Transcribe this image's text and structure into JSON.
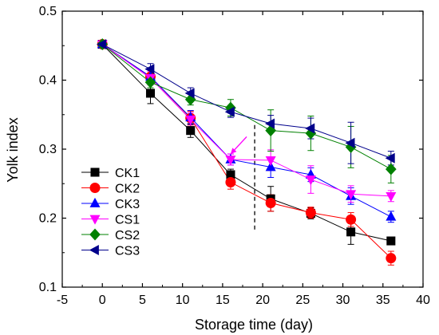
{
  "chart_data": {
    "type": "line",
    "xlabel": "Storage time (day)",
    "ylabel": "Yolk index",
    "xlim": [
      -5,
      40
    ],
    "ylim": [
      0.1,
      0.5
    ],
    "xticks": [
      -5,
      0,
      5,
      10,
      15,
      20,
      25,
      30,
      35,
      40
    ],
    "yticks": [
      0.1,
      0.2,
      0.3,
      0.4,
      0.5
    ],
    "x": [
      0,
      6,
      11,
      16,
      21,
      26,
      31,
      36
    ],
    "legend_position": "center-left",
    "reference_line_x": 19,
    "annotation_arrow": {
      "from": [
        18,
        0.318
      ],
      "to": [
        16,
        0.293
      ],
      "color": "#ff00ff"
    },
    "series": [
      {
        "name": "CK1",
        "color": "#000000",
        "marker": "square",
        "values": [
          0.452,
          0.381,
          0.327,
          0.263,
          0.228,
          0.207,
          0.18,
          0.167
        ],
        "errors": [
          0.005,
          0.015,
          0.01,
          0.008,
          0.018,
          0.008,
          0.018,
          0.005
        ]
      },
      {
        "name": "CK2",
        "color": "#ff0000",
        "marker": "circle",
        "values": [
          0.452,
          0.405,
          0.345,
          0.252,
          0.222,
          0.208,
          0.198,
          0.142
        ],
        "errors": [
          0.005,
          0.012,
          0.01,
          0.01,
          0.012,
          0.008,
          0.01,
          0.01
        ]
      },
      {
        "name": "CK3",
        "color": "#0000ff",
        "marker": "triangle-up",
        "values": [
          0.452,
          0.405,
          0.346,
          0.285,
          0.274,
          0.263,
          0.232,
          0.202
        ],
        "errors": [
          0.005,
          0.01,
          0.01,
          0.008,
          0.015,
          0.01,
          0.012,
          0.008
        ]
      },
      {
        "name": "CS1",
        "color": "#ff00ff",
        "marker": "triangle-down",
        "values": [
          0.452,
          0.403,
          0.343,
          0.285,
          0.284,
          0.256,
          0.235,
          0.232
        ],
        "errors": [
          0.005,
          0.01,
          0.01,
          0.008,
          0.015,
          0.02,
          0.012,
          0.008
        ]
      },
      {
        "name": "CS2",
        "color": "#008000",
        "marker": "diamond",
        "values": [
          0.452,
          0.397,
          0.372,
          0.36,
          0.327,
          0.323,
          0.303,
          0.271
        ],
        "errors": [
          0.005,
          0.008,
          0.008,
          0.012,
          0.03,
          0.025,
          0.03,
          0.02
        ]
      },
      {
        "name": "CS3",
        "color": "#00008b",
        "marker": "triangle-left",
        "values": [
          0.452,
          0.416,
          0.381,
          0.354,
          0.337,
          0.33,
          0.309,
          0.287
        ],
        "errors": [
          0.005,
          0.008,
          0.008,
          0.008,
          0.012,
          0.015,
          0.03,
          0.01
        ]
      }
    ]
  }
}
